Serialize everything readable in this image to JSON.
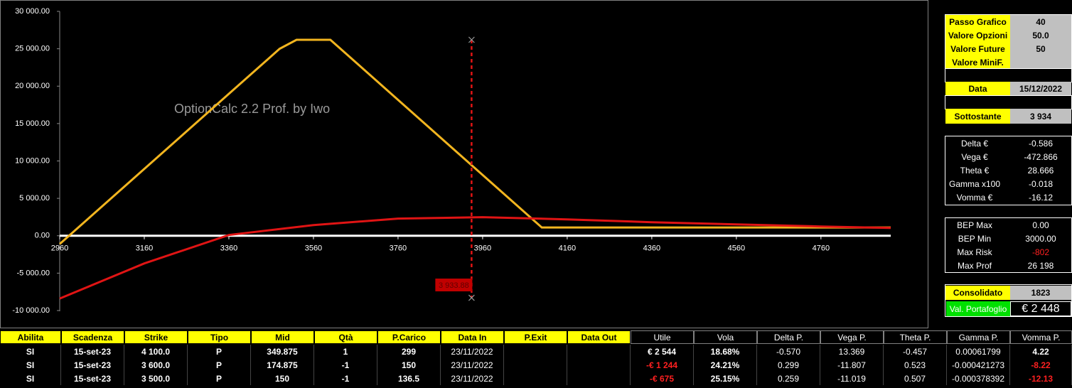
{
  "chart_data": {
    "type": "line",
    "watermark": "OptionCalc 2.2 Prof. by Iwo",
    "series": [
      {
        "color": "#f2b51f",
        "x": [
          2960,
          3480,
          3520,
          3600,
          4100,
          4925
        ],
        "values": [
          -1100,
          25000,
          26200,
          26200,
          1100,
          1100
        ]
      },
      {
        "color": "#e01414",
        "x": [
          2960,
          3160,
          3360,
          3560,
          3760,
          3960,
          4160,
          4360,
          4560,
          4760,
          4925
        ],
        "values": [
          -8400,
          -3700,
          100,
          1430,
          2290,
          2480,
          2190,
          1810,
          1520,
          1240,
          1050
        ]
      }
    ],
    "xlim": [
      2960,
      4925
    ],
    "ylim": [
      -10000,
      30000
    ],
    "xticks": [
      2960,
      3160,
      3360,
      3560,
      3760,
      3960,
      4160,
      4360,
      4560,
      4760
    ],
    "yticks": [
      {
        "value": -10000,
        "label": "-10 000.00"
      },
      {
        "value": -5000,
        "label": "-5 000.00"
      },
      {
        "value": 0,
        "label": "0.00"
      },
      {
        "value": 5000,
        "label": "5 000.00"
      },
      {
        "value": 10000,
        "label": "10 000.00"
      },
      {
        "value": 15000,
        "label": "15 000.00"
      },
      {
        "value": 20000,
        "label": "20 000.00"
      },
      {
        "value": 25000,
        "label": "25 000.00"
      },
      {
        "value": 30000,
        "label": "30 000.00"
      }
    ],
    "marker": {
      "x": 3933.88,
      "label": "3 933.88",
      "range": [
        -8300,
        26200
      ]
    }
  },
  "settings": [
    {
      "label": "Passo Grafico",
      "value": "40"
    },
    {
      "label": "Valore Opzioni",
      "value": "50.0"
    },
    {
      "label": "Valore Future",
      "value": "50"
    },
    {
      "label": "Valore MiniF."
    }
  ],
  "date": {
    "label": "Data",
    "value": "15/12/2022"
  },
  "underlying": {
    "label": "Sottostante",
    "value": "3 934"
  },
  "greeks": [
    {
      "label": "Delta €",
      "value": "-0.586"
    },
    {
      "label": "Vega €",
      "value": "-472.866"
    },
    {
      "label": "Theta €",
      "value": "28.666"
    },
    {
      "label": "Gamma x100",
      "value": "-0.018"
    },
    {
      "label": "Vomma €",
      "value": "-16.12"
    }
  ],
  "bep": [
    {
      "label": "BEP Max",
      "value": "0.00"
    },
    {
      "label": "BEP Min",
      "value": "3000.00"
    },
    {
      "label": "Max Risk",
      "value": "-802"
    },
    {
      "label": "Max Prof",
      "value": "26 198"
    }
  ],
  "consolidated": {
    "label": "Consolidato",
    "value": "1823"
  },
  "portfolio": {
    "label": "Val. Portafoglio",
    "value": "€ 2 448"
  },
  "table": {
    "header": [
      "Abilita",
      "Scadenza",
      "Strike",
      "Tipo",
      "Mid",
      "Qtà",
      "P.Carico",
      "Data In",
      "P.Exit",
      "Data Out",
      "Utile",
      "Vola",
      "Delta P.",
      "Vega P.",
      "Theta P.",
      "Gamma P.",
      "Vomma P."
    ],
    "rows": [
      [
        "SI",
        "15-set-23",
        "4 100.0",
        "P",
        "349.875",
        "1",
        "299",
        "23/11/2022",
        null,
        null,
        "€ 2 544",
        "18.68%",
        "-0.570",
        "13.369",
        "-0.457",
        "0.00061799",
        "4.22"
      ],
      [
        "SI",
        "15-set-23",
        "3 600.0",
        "P",
        "174.875",
        "-1",
        "150",
        "23/11/2022",
        null,
        null,
        "-€ 1 244",
        "24.21%",
        "0.299",
        "-11.807",
        "0.523",
        "-0.000421273",
        "-8.22"
      ],
      [
        "SI",
        "15-set-23",
        "3 500.0",
        "P",
        "150",
        "-1",
        "136.5",
        "23/11/2022",
        null,
        null,
        "-€ 675",
        "25.15%",
        "0.259",
        "-11.019",
        "0.507",
        "-0.000378392",
        "-12.13"
      ]
    ]
  }
}
